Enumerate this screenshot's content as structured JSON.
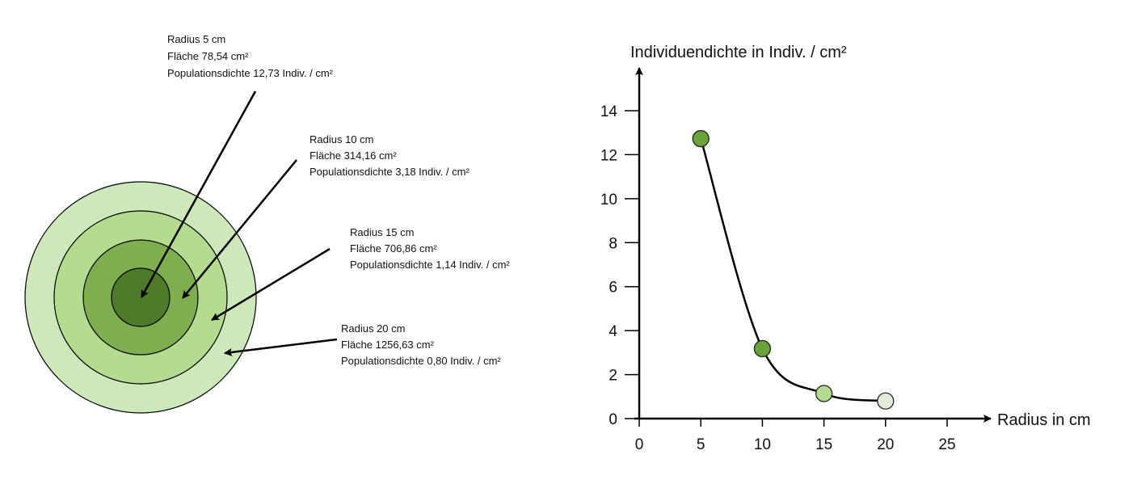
{
  "rings": [
    {
      "radius_label": "Radius 5 cm",
      "area_label": "Fläche 78,54 cm²",
      "density_label": "Populationsdichte 12,73 Indiv. / cm²",
      "color": "#4f7a2a"
    },
    {
      "radius_label": "Radius 10 cm",
      "area_label": "Fläche 314,16 cm²",
      "density_label": "Populationsdichte 3,18 Indiv. / cm²",
      "color": "#7fae4f"
    },
    {
      "radius_label": "Radius 15 cm",
      "area_label": "Fläche 706,86 cm²",
      "density_label": "Populationsdichte 1,14 Indiv. / cm²",
      "color": "#b3dc8f"
    },
    {
      "radius_label": "Radius 20 cm",
      "area_label": "Fläche 1256,63 cm²",
      "density_label": "Populationsdichte 0,80 Indiv. / cm²",
      "color": "#cde8b9"
    }
  ],
  "chart_data": {
    "type": "line",
    "ylabel": "Individuendichte in Indiv. / cm²",
    "xlabel": "Radius in cm",
    "x": [
      5,
      10,
      15,
      20
    ],
    "y": [
      12.73,
      3.18,
      1.14,
      0.8
    ],
    "point_colors": [
      "#6aa33a",
      "#6aa33a",
      "#b3dc8f",
      "#e2ecd8"
    ],
    "xlim": [
      0,
      25
    ],
    "ylim": [
      0,
      14
    ],
    "xticks": [
      "0",
      "5",
      "10",
      "15",
      "20",
      "25"
    ],
    "yticks": [
      "0",
      "2",
      "4",
      "6",
      "8",
      "10",
      "12",
      "14"
    ]
  }
}
